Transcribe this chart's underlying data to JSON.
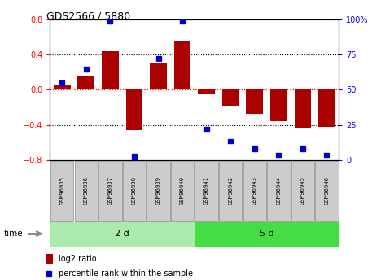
{
  "title": "GDS2566 / 5880",
  "samples": [
    "GSM96935",
    "GSM96936",
    "GSM96937",
    "GSM96938",
    "GSM96939",
    "GSM96940",
    "GSM96941",
    "GSM96942",
    "GSM96943",
    "GSM96944",
    "GSM96945",
    "GSM96946"
  ],
  "log2_ratio": [
    0.05,
    0.15,
    0.44,
    -0.46,
    0.3,
    0.55,
    -0.05,
    -0.18,
    -0.28,
    -0.36,
    -0.44,
    -0.43
  ],
  "percentile": [
    55,
    65,
    99,
    2,
    72,
    99,
    22,
    13,
    8,
    3,
    8,
    3
  ],
  "groups": [
    {
      "label": "2 d",
      "start": 0,
      "end": 6,
      "color": "#AAEAAA"
    },
    {
      "label": "5 d",
      "start": 6,
      "end": 12,
      "color": "#44DD44"
    }
  ],
  "bar_color": "#AA0000",
  "dot_color": "#0000CC",
  "ylim_left": [
    -0.8,
    0.8
  ],
  "ylim_right": [
    0,
    100
  ],
  "yticks_left": [
    -0.8,
    -0.4,
    0.0,
    0.4,
    0.8
  ],
  "yticks_right": [
    0,
    25,
    50,
    75,
    100
  ],
  "hline_color": "#FF0000",
  "dotted_color": "#000000",
  "bg_color": "#FFFFFF",
  "time_label": "time",
  "legend_bar_label": "log2 ratio",
  "legend_dot_label": "percentile rank within the sample",
  "sample_box_color": "#CCCCCC",
  "sample_box_edge": "#888888"
}
